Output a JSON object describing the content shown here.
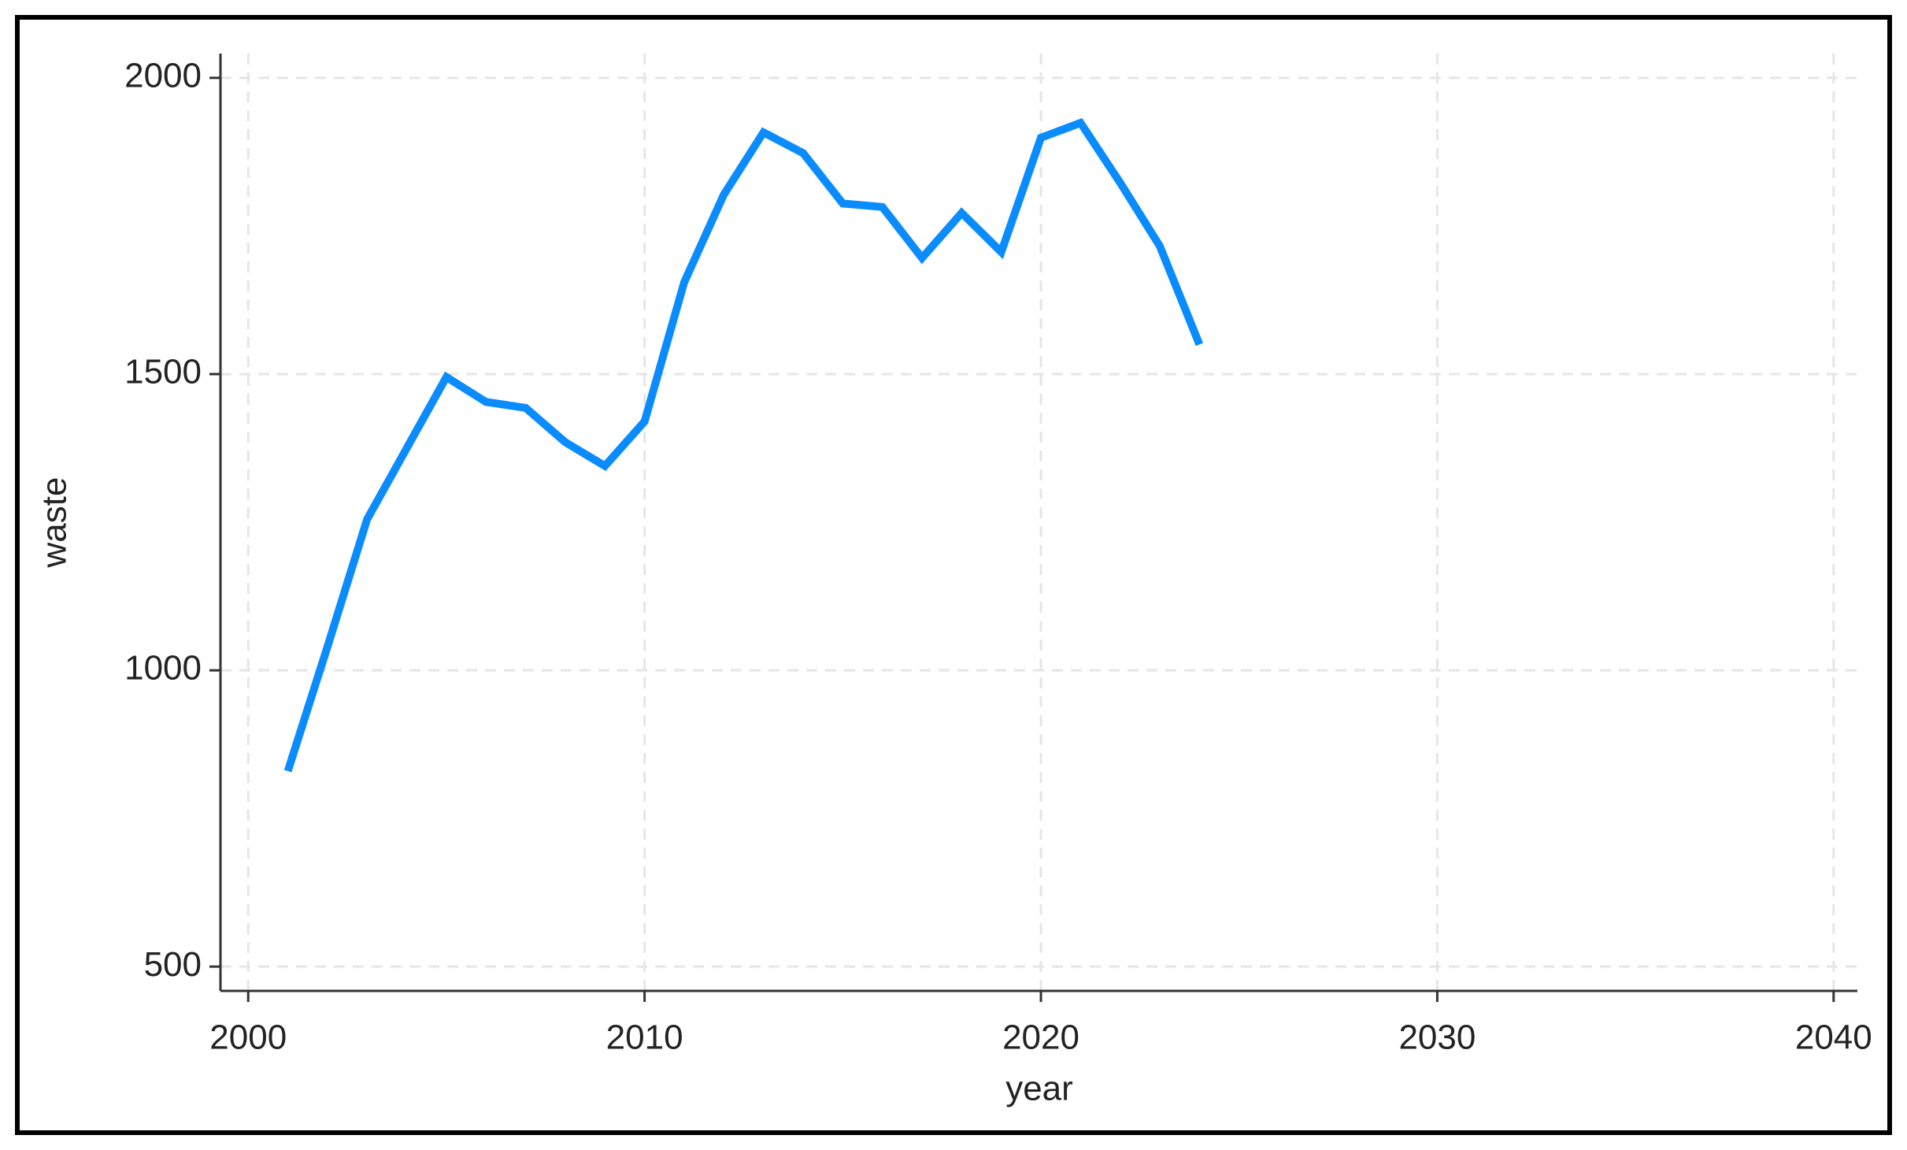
{
  "chart_data": {
    "type": "line",
    "x_label": "year",
    "y_label": "waste",
    "x": [
      2001,
      2002,
      2003,
      2004,
      2005,
      2006,
      2007,
      2008,
      2009,
      2010,
      2011,
      2012,
      2013,
      2014,
      2015,
      2016,
      2017,
      2018,
      2019,
      2020,
      2021,
      2022,
      2023,
      2024
    ],
    "values": [
      830,
      1040,
      1255,
      1375,
      1495,
      1453,
      1443,
      1385,
      1345,
      1420,
      1655,
      1803,
      1908,
      1873,
      1788,
      1782,
      1696,
      1772,
      1706,
      1899,
      1924,
      1823,
      1716,
      1550
    ],
    "color": "#0a8cff",
    "xlim": [
      1999.3,
      2040.6
    ],
    "xticks": [
      2000,
      2010,
      2020,
      2030,
      2040
    ],
    "ylim": [
      459,
      2041
    ],
    "yticks": [
      500,
      1000,
      1500,
      2000
    ],
    "grid": true
  }
}
